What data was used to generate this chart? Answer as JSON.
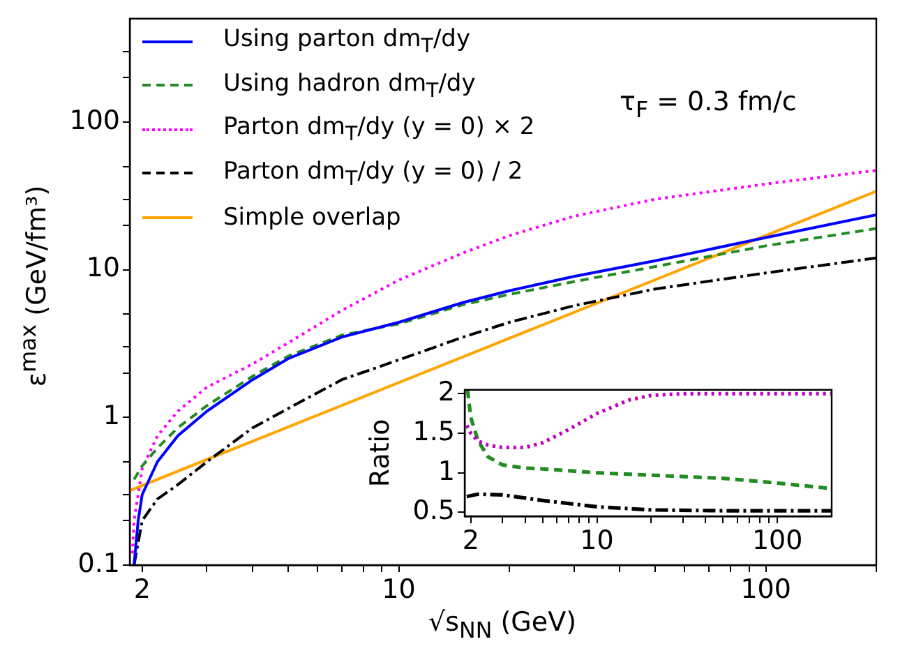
{
  "chart_data": [
    {
      "type": "line",
      "xlabel": "√s$_{NN}$ (GeV)",
      "ylabel": "ε$^{max}$ (GeV/fm³)",
      "annotations": [
        "τ$_{F}$ = 0.3 fm/c"
      ],
      "log": "xy",
      "grid": false,
      "legend": "top left",
      "marker": "none",
      "xlim": [
        1.85,
        200
      ],
      "ylim": [
        0.1,
        500
      ],
      "xticks": [
        2,
        {
          "value": 3,
          "label": null
        },
        {
          "value": 4,
          "label": null
        },
        {
          "value": 5,
          "label": null
        },
        {
          "value": 6,
          "label": null
        },
        {
          "value": 7,
          "label": null
        },
        {
          "value": 8,
          "label": null
        },
        {
          "value": 9,
          "label": null
        },
        10,
        {
          "value": 20,
          "label": null
        },
        {
          "value": 30,
          "label": null
        },
        {
          "value": 40,
          "label": null
        },
        {
          "value": 50,
          "label": null
        },
        {
          "value": 60,
          "label": null
        },
        {
          "value": 70,
          "label": null
        },
        {
          "value": 80,
          "label": null
        },
        {
          "value": 90,
          "label": null
        },
        100,
        {
          "value": 200,
          "label": null
        }
      ],
      "yticks": [
        0.1,
        {
          "value": 0.2,
          "label": null
        },
        {
          "value": 0.3,
          "label": null
        },
        {
          "value": 0.5,
          "label": null
        },
        1,
        {
          "value": 2,
          "label": null
        },
        {
          "value": 3,
          "label": null
        },
        {
          "value": 5,
          "label": null
        },
        10,
        {
          "value": 20,
          "label": null
        },
        {
          "value": 30,
          "label": null
        },
        {
          "value": 50,
          "label": null
        },
        100,
        {
          "value": 200,
          "label": null
        },
        {
          "value": 300,
          "label": null
        }
      ],
      "series": [
        {
          "name": "Using parton dm$_{T}$/dy",
          "color": "#0000ff",
          "line_style": "solid",
          "x": [
            1.9,
            1.95,
            2,
            2.2,
            2.5,
            3,
            4,
            5,
            7,
            10,
            15,
            20,
            30,
            50,
            100,
            200
          ],
          "values": [
            0.1,
            0.2,
            0.3,
            0.5,
            0.75,
            1.1,
            1.8,
            2.5,
            3.5,
            4.4,
            6,
            7.2,
            9,
            11.5,
            16.5,
            23.5
          ]
        },
        {
          "name": "Using hadron dm$_{T}$/dy",
          "color": "#228b22",
          "line_style": "dashed",
          "x": [
            1.9,
            2,
            2.2,
            2.5,
            3,
            4,
            5,
            7,
            10,
            15,
            20,
            30,
            50,
            100,
            200
          ],
          "values": [
            0.38,
            0.47,
            0.62,
            0.85,
            1.2,
            1.9,
            2.6,
            3.6,
            4.3,
            5.8,
            6.8,
            8.3,
            10.5,
            14.5,
            19
          ]
        },
        {
          "name": "Parton dm$_{T}$/dy (y = 0) × 2",
          "color": "#ff00ff",
          "line_style": "dotted",
          "x": [
            1.88,
            1.9,
            2,
            2.2,
            2.5,
            3,
            4,
            5,
            7,
            10,
            15,
            20,
            30,
            50,
            100,
            200
          ],
          "values": [
            0.12,
            0.2,
            0.45,
            0.75,
            1.1,
            1.6,
            2.3,
            3.2,
            5.3,
            8.5,
            13,
            17,
            23,
            30,
            38,
            47
          ]
        },
        {
          "name": "Parton dm$_{T}$/dy (y = 0) / 2",
          "color": "#000000",
          "line_style": "dashdot",
          "x": [
            1.9,
            2,
            2.2,
            2.5,
            3,
            4,
            5,
            7,
            10,
            15,
            20,
            30,
            50,
            100,
            200
          ],
          "values": [
            0.1,
            0.2,
            0.28,
            0.35,
            0.5,
            0.85,
            1.15,
            1.8,
            2.45,
            3.5,
            4.4,
            5.7,
            7.4,
            9.5,
            12
          ]
        },
        {
          "name": "Simple overlap",
          "color": "#ffa500",
          "line_style": "solid",
          "x": [
            1.85,
            200
          ],
          "values": [
            0.32,
            34
          ]
        }
      ]
    },
    {
      "type": "line",
      "ylabel": "Ratio",
      "log": "x",
      "grid": false,
      "marker": "none",
      "xlim": [
        1.85,
        200
      ],
      "ylim": [
        0.45,
        2.05
      ],
      "xticks": [
        2,
        {
          "value": 3,
          "label": null
        },
        {
          "value": 4,
          "label": null
        },
        {
          "value": 5,
          "label": null
        },
        {
          "value": 6,
          "label": null
        },
        {
          "value": 7,
          "label": null
        },
        {
          "value": 8,
          "label": null
        },
        {
          "value": 9,
          "label": null
        },
        10,
        {
          "value": 20,
          "label": null
        },
        {
          "value": 30,
          "label": null
        },
        {
          "value": 40,
          "label": null
        },
        {
          "value": 50,
          "label": null
        },
        {
          "value": 60,
          "label": null
        },
        {
          "value": 70,
          "label": null
        },
        {
          "value": 80,
          "label": null
        },
        {
          "value": 90,
          "label": null
        },
        100
      ],
      "yticks": [
        0.5,
        1,
        1.5,
        2
      ],
      "series": [
        {
          "color": "#bf00bf",
          "line_style": "dotted",
          "x": [
            1.9,
            2,
            2.2,
            2.5,
            3,
            4,
            5,
            7,
            10,
            15,
            20,
            30,
            50,
            100,
            200
          ],
          "values": [
            1.6,
            1.5,
            1.4,
            1.35,
            1.32,
            1.32,
            1.38,
            1.55,
            1.75,
            1.92,
            1.98,
            2.0,
            2.0,
            2.0,
            2.0
          ]
        },
        {
          "color": "#228b22",
          "line_style": "dashed",
          "x": [
            1.92,
            2,
            2.2,
            2.5,
            3,
            4,
            5,
            10,
            20,
            50,
            100,
            200
          ],
          "values": [
            2.05,
            1.7,
            1.4,
            1.2,
            1.1,
            1.06,
            1.05,
            1.0,
            0.97,
            0.93,
            0.87,
            0.8
          ]
        },
        {
          "color": "#000000",
          "line_style": "dashdot",
          "x": [
            1.9,
            2.2,
            3,
            5,
            10,
            20,
            50,
            200
          ],
          "values": [
            0.7,
            0.73,
            0.72,
            0.65,
            0.57,
            0.53,
            0.52,
            0.52
          ]
        }
      ]
    }
  ]
}
